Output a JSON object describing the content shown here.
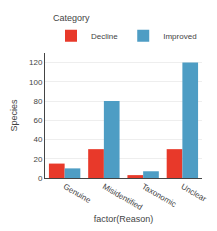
{
  "chart_data": {
    "type": "bar",
    "categories": [
      "Genuine",
      "Misidentified",
      "Taxonomic",
      "Unclear"
    ],
    "series": [
      {
        "name": "Decline",
        "color": "#E8392A",
        "values": [
          15,
          30,
          3,
          30
        ]
      },
      {
        "name": "Improved",
        "color": "#4E9DC4",
        "values": [
          10,
          80,
          7,
          120
        ]
      }
    ],
    "xlabel": "factor(Reason)",
    "ylabel": "Species",
    "ylim": [
      0,
      130
    ],
    "yticks": [
      0,
      20,
      40,
      60,
      80,
      100,
      120
    ],
    "grid": true,
    "legend": "upper right",
    "legend_title": "Category"
  }
}
